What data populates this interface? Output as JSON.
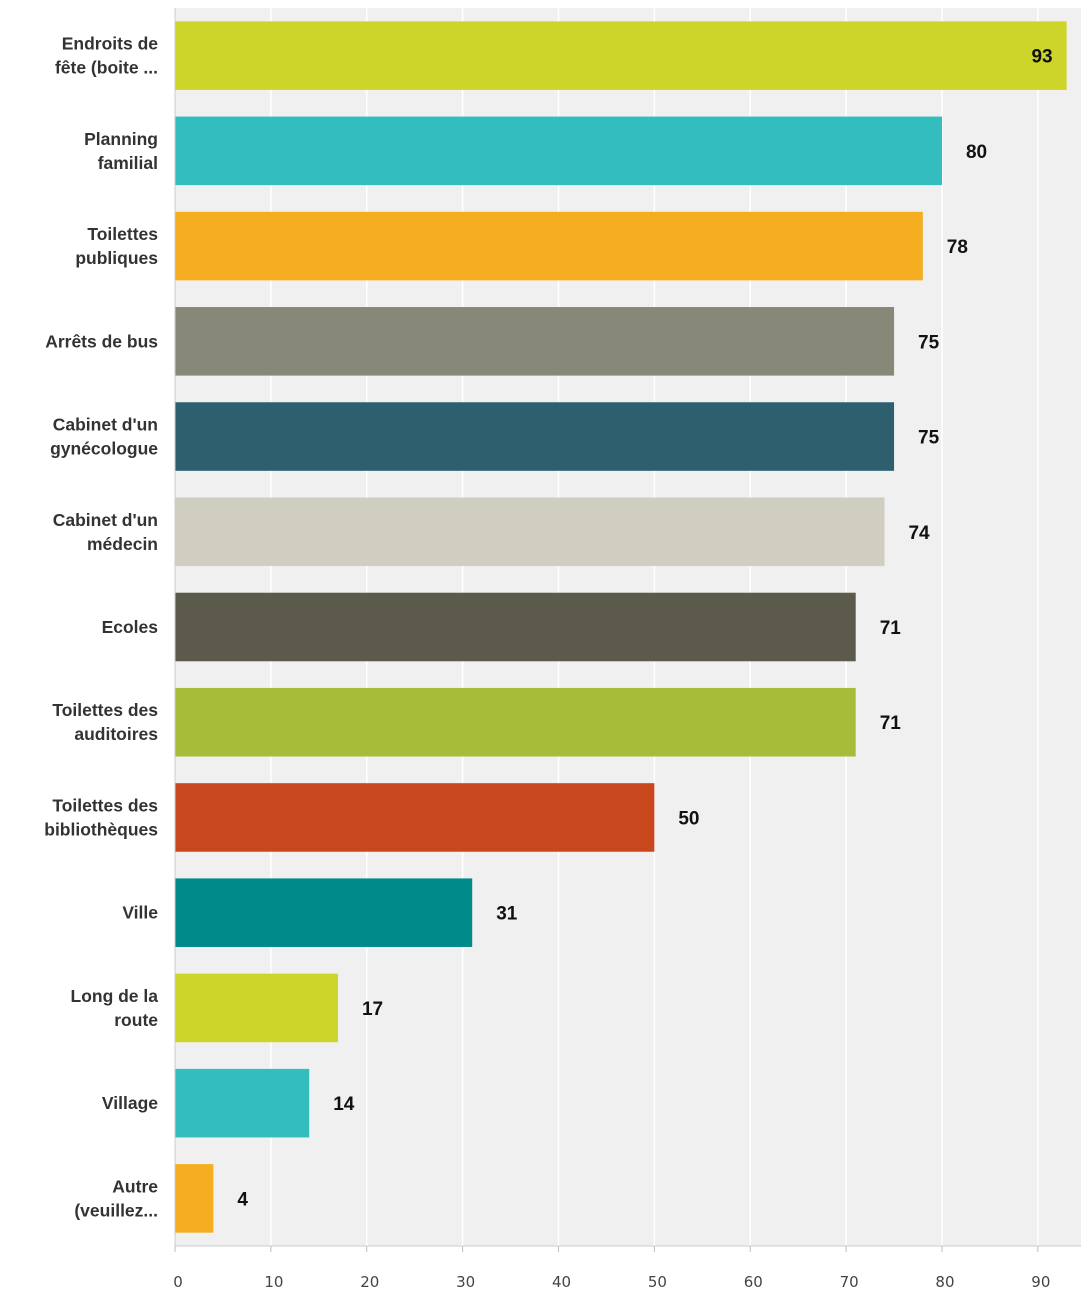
{
  "chart_data": {
    "type": "bar",
    "orientation": "horizontal",
    "categories": [
      [
        "Endroits de",
        "fête (boite ..."
      ],
      [
        "Planning",
        "familial"
      ],
      [
        "Toilettes",
        "publiques"
      ],
      [
        "Arrêts de bus"
      ],
      [
        "Cabinet d'un",
        "gynécologue"
      ],
      [
        "Cabinet d'un",
        "médecin"
      ],
      [
        "Ecoles"
      ],
      [
        "Toilettes des",
        "auditoires"
      ],
      [
        "Toilettes des",
        "bibliothèques"
      ],
      [
        "Ville"
      ],
      [
        "Long de la",
        "route"
      ],
      [
        "Village"
      ],
      [
        "Autre",
        "(veuillez..."
      ]
    ],
    "values": [
      93,
      80,
      78,
      75,
      75,
      74,
      71,
      71,
      50,
      31,
      17,
      14,
      4
    ],
    "colors": [
      "#cdd42a",
      "#33bdbf",
      "#f5ae20",
      "#878878",
      "#2d5f6e",
      "#d0cec0",
      "#5b5a4b",
      "#a7bd3a",
      "#c9471c",
      "#008a8a",
      "#cdd42a",
      "#33bdbf",
      "#f5ae20"
    ],
    "xlim": [
      0,
      94.5
    ],
    "xticks": [
      0,
      10,
      20,
      30,
      40,
      50,
      60,
      70,
      80,
      90
    ],
    "grid": true,
    "title": "",
    "xlabel": "",
    "ylabel": ""
  }
}
